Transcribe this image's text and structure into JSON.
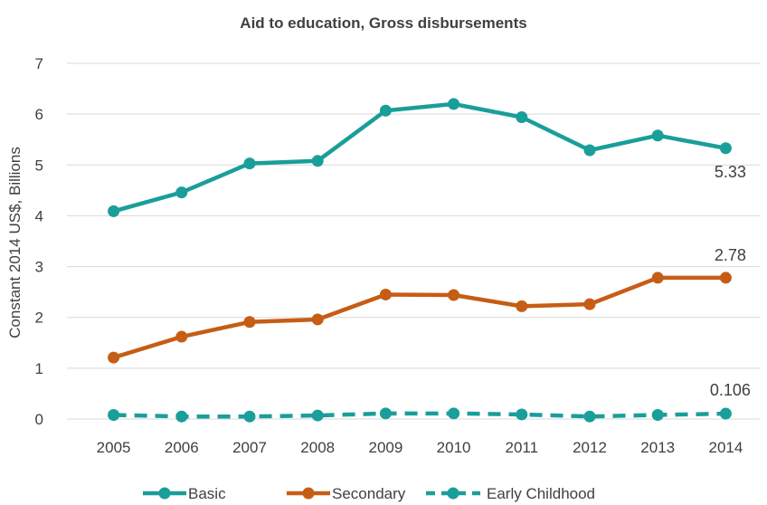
{
  "chart_data": {
    "type": "line",
    "title": "Aid to education, Gross disbursements",
    "xlabel": "",
    "ylabel": "Constant 2014 US$, Billions",
    "x": [
      "2005",
      "2006",
      "2007",
      "2008",
      "2009",
      "2010",
      "2011",
      "2012",
      "2013",
      "2014"
    ],
    "yticks": [
      "0",
      "1",
      "2",
      "3",
      "4",
      "5",
      "6",
      "7"
    ],
    "ylim": [
      0,
      7
    ],
    "grid": true,
    "legend_position": "bottom",
    "series": [
      {
        "name": "Basic",
        "color": "#1a9e9a",
        "dashed": false,
        "values": [
          4.09,
          4.46,
          5.03,
          5.08,
          6.07,
          6.2,
          5.94,
          5.29,
          5.58,
          5.33
        ],
        "end_label": "5.33"
      },
      {
        "name": "Secondary",
        "color": "#c65d15",
        "dashed": false,
        "values": [
          1.21,
          1.62,
          1.91,
          1.96,
          2.45,
          2.44,
          2.22,
          2.26,
          2.78,
          2.78
        ],
        "end_label": "2.78"
      },
      {
        "name": "Early Childhood",
        "color": "#1a9e9a",
        "dashed": true,
        "values": [
          0.08,
          0.05,
          0.05,
          0.07,
          0.11,
          0.11,
          0.09,
          0.05,
          0.08,
          0.106
        ],
        "end_label": "0.106"
      }
    ]
  }
}
